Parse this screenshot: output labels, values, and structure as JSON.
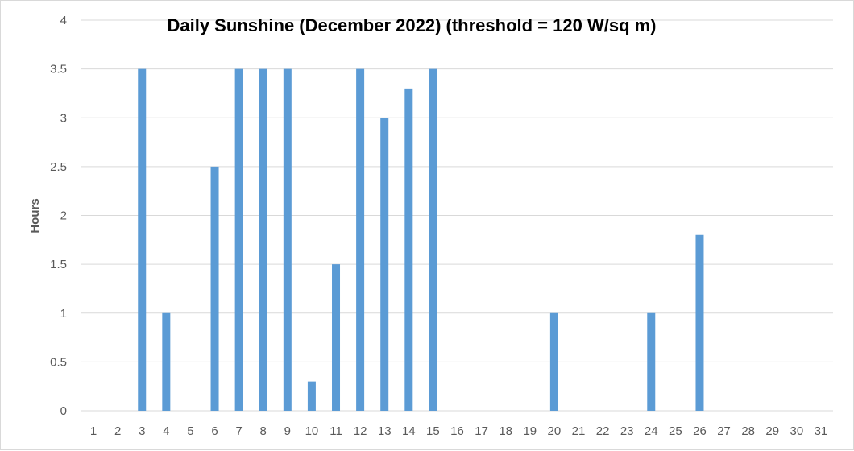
{
  "chart_data": {
    "type": "bar",
    "title": "Daily Sunshine (December 2022) (threshold = 120 W/sq m)",
    "xlabel": "",
    "ylabel": "Hours",
    "ylim": [
      0,
      4
    ],
    "ytick_step": 0.5,
    "yticks": [
      "0",
      "0.5",
      "1",
      "1.5",
      "2",
      "2.5",
      "3",
      "3.5",
      "4"
    ],
    "categories": [
      "1",
      "2",
      "3",
      "4",
      "5",
      "6",
      "7",
      "8",
      "9",
      "10",
      "11",
      "12",
      "13",
      "14",
      "15",
      "16",
      "17",
      "18",
      "19",
      "20",
      "21",
      "22",
      "23",
      "24",
      "25",
      "26",
      "27",
      "28",
      "29",
      "30",
      "31"
    ],
    "values": [
      0,
      0,
      3.5,
      1,
      0,
      2.5,
      3.5,
      3.5,
      3.5,
      0.3,
      1.5,
      3.5,
      3,
      3.3,
      3.5,
      0,
      0,
      0,
      0,
      1,
      0,
      0,
      0,
      1,
      0,
      1.8,
      0,
      0,
      0,
      0,
      0
    ],
    "grid": true,
    "legend": "none",
    "bar_color": "#5b9bd5",
    "grid_color": "#d9d9d9"
  }
}
